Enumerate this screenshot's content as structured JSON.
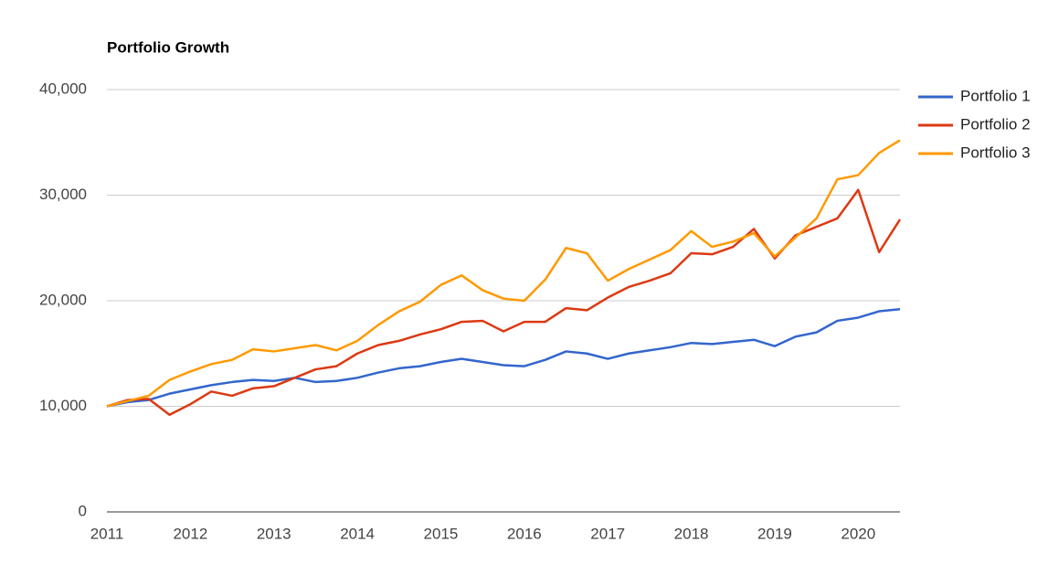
{
  "chart_data": {
    "type": "line",
    "title": "Portfolio Growth",
    "x": [
      2011,
      2011.25,
      2011.5,
      2011.75,
      2012,
      2012.25,
      2012.5,
      2012.75,
      2013,
      2013.25,
      2013.5,
      2013.75,
      2014,
      2014.25,
      2014.5,
      2014.75,
      2015,
      2015.25,
      2015.5,
      2015.75,
      2016,
      2016.25,
      2016.5,
      2016.75,
      2017,
      2017.25,
      2017.5,
      2017.75,
      2018,
      2018.25,
      2018.5,
      2018.75,
      2019,
      2019.25,
      2019.5,
      2019.75,
      2020,
      2020.25,
      2020.5
    ],
    "series": [
      {
        "name": "Portfolio 1",
        "color": "#3366cc",
        "values": [
          10000,
          10400,
          10600,
          11200,
          11600,
          12000,
          12300,
          12500,
          12400,
          12700,
          12300,
          12400,
          12700,
          13200,
          13600,
          13800,
          14200,
          14500,
          14200,
          13900,
          13800,
          14400,
          15200,
          15000,
          14500,
          15000,
          15300,
          15600,
          16000,
          15900,
          16100,
          16300,
          15700,
          16600,
          17000,
          18100,
          18400,
          19000,
          19200
        ]
      },
      {
        "name": "Portfolio 2",
        "color": "#dc3912",
        "values": [
          10000,
          10600,
          10700,
          9200,
          10200,
          11400,
          11000,
          11700,
          11900,
          12700,
          13500,
          13800,
          15000,
          15800,
          16200,
          16800,
          17300,
          18000,
          18100,
          17100,
          18000,
          18000,
          19300,
          19100,
          20300,
          21300,
          21900,
          22600,
          24500,
          24400,
          25100,
          26800,
          24000,
          26200,
          27000,
          27800,
          30500,
          24600,
          27700
        ]
      },
      {
        "name": "Portfolio 3",
        "color": "#ff9900",
        "values": [
          10000,
          10500,
          11000,
          12500,
          13300,
          14000,
          14400,
          15400,
          15200,
          15500,
          15800,
          15300,
          16200,
          17700,
          19000,
          19900,
          21500,
          22400,
          21000,
          20200,
          20000,
          22000,
          25000,
          24500,
          21900,
          23000,
          23900,
          24800,
          26600,
          25100,
          25600,
          26400,
          24200,
          26000,
          27800,
          31500,
          31900,
          34000,
          35200
        ]
      }
    ],
    "xlim": [
      2011,
      2020.5
    ],
    "xticks": [
      2011,
      2012,
      2013,
      2014,
      2015,
      2016,
      2017,
      2018,
      2019,
      2020
    ],
    "ylim": [
      0,
      40000
    ],
    "yticks": [
      0,
      {
        "value": 10000,
        "label": "10,000"
      },
      {
        "value": 20000,
        "label": "20,000"
      },
      {
        "value": 30000,
        "label": "30,000"
      },
      {
        "value": 40000,
        "label": "40,000"
      }
    ],
    "grid": true,
    "legend": "right"
  }
}
